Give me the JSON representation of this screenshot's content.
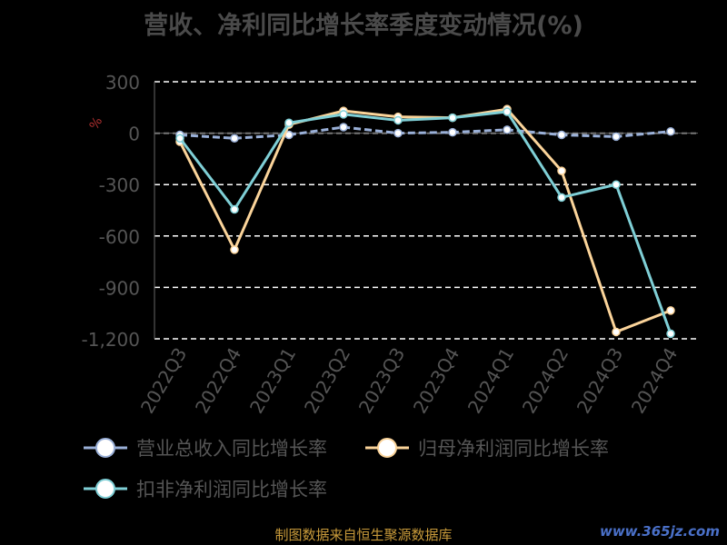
{
  "title": "营收、净利同比增长率季度变动情况(%)",
  "source": "制图数据来自恒生聚源数据库",
  "watermark": "www.365jz.com",
  "unit_mark": "%",
  "chart_data": {
    "type": "line",
    "title": "营收、净利同比增长率季度变动情况(%)",
    "categories": [
      "2022Q3",
      "2022Q4",
      "2023Q1",
      "2023Q2",
      "2023Q3",
      "2023Q4",
      "2024Q1",
      "2024Q2",
      "2024Q3",
      "2024Q4"
    ],
    "y_ticks": [
      300,
      0,
      -300,
      -600,
      -900,
      -1200
    ],
    "y_tick_labels": [
      "300",
      "0",
      "-300",
      "-600",
      "-900",
      "-1,200"
    ],
    "ylim": [
      -1200,
      300
    ],
    "grid": true,
    "legend_position": "bottom",
    "series": [
      {
        "name": "营业总收入同比增长率",
        "color": "#9ab0d8",
        "values": [
          -10,
          -30,
          -10,
          35,
          0,
          5,
          20,
          -10,
          -20,
          10
        ]
      },
      {
        "name": "归母净利润同比增长率",
        "color": "#fbd49a",
        "values": [
          -50,
          -680,
          50,
          130,
          95,
          90,
          140,
          -220,
          -1160,
          -1035
        ]
      },
      {
        "name": "扣非净利润同比增长率",
        "color": "#7fcfd6",
        "values": [
          -30,
          -445,
          60,
          110,
          75,
          90,
          125,
          -375,
          -300,
          -1170
        ]
      }
    ]
  }
}
